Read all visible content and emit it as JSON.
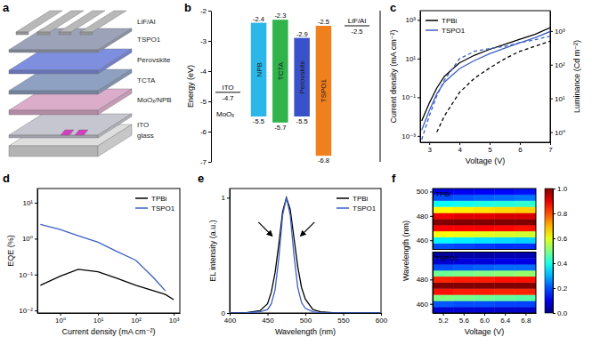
{
  "diagram": {
    "panel": "a",
    "layers": [
      "LiF/Al",
      "TSPO1",
      "Perovskite",
      "TCTA",
      "MoOₓ/NPB",
      "ITO",
      "glass"
    ]
  },
  "chart_data": [
    {
      "type": "energy_levels",
      "panel": "b",
      "ylabel": "Energy (eV)",
      "ylim": [
        -7,
        -2
      ],
      "yticks": [
        -7,
        -6,
        -5,
        -4,
        -3,
        -2
      ],
      "tick_labels": "y",
      "categories": [
        "NPB",
        "TCTA",
        "Perovskite",
        "TSPO1"
      ],
      "high": [
        -2.4,
        -2.3,
        -2.9,
        -2.5
      ],
      "low": [
        -5.5,
        -5.7,
        -5.5,
        -6.8
      ],
      "colors": [
        "#2bb7e9",
        "#2fb34a",
        "#3a52c9",
        "#f0801e"
      ],
      "data_labels": true,
      "levels": [
        {
          "label": "ITO",
          "value": -4.7
        },
        {
          "label": "LiF/Al",
          "value": -2.5
        }
      ],
      "annotations": [
        {
          "text": "MoOₓ",
          "y": -5.4
        }
      ]
    },
    {
      "type": "line",
      "panel": "c",
      "xlabel": "Voltage (V)",
      "ylabel": "Current density (mA cm⁻²)",
      "y2label": "Luminance (Cd m⁻²)",
      "log": "y",
      "x": [
        2.75,
        3,
        3.25,
        3.5,
        4,
        4.5,
        5,
        5.5,
        6,
        6.5,
        7
      ],
      "xlim": [
        2.7,
        7
      ],
      "xticks": [
        3,
        4,
        5,
        6,
        7
      ],
      "ylim": [
        0.00047,
        3000
      ],
      "yticks": [
        {
          "value": 0.001,
          "label": "10⁻³"
        },
        {
          "value": 0.1,
          "label": "10⁻¹"
        },
        {
          "value": 10,
          "label": "10¹"
        },
        {
          "value": 1000,
          "label": "10³"
        }
      ],
      "y2lim": [
        0.5,
        4000
      ],
      "y2ticks": [
        {
          "value": 1,
          "label": "10⁰"
        },
        {
          "value": 10,
          "label": "10¹"
        },
        {
          "value": 100,
          "label": "10²"
        },
        {
          "value": 1000,
          "label": "10³"
        }
      ],
      "legend": "top-left",
      "series": [
        {
          "name": "TPBi",
          "color": "#000000",
          "line_style": "solid",
          "values": [
            0.006,
            0.05,
            0.3,
            1.2,
            6,
            15,
            30,
            55,
            100,
            180,
            400
          ]
        },
        {
          "name": "TSPO1",
          "color": "#3b5fc4",
          "line_style": "solid",
          "values": [
            0.002,
            0.02,
            0.15,
            0.6,
            3,
            8,
            18,
            35,
            65,
            120,
            250
          ]
        },
        {
          "name": "TPBi",
          "color": "#000000",
          "line_style": "dashed",
          "axis": "y2",
          "values": [
            null,
            null,
            1,
            3,
            15,
            40,
            80,
            150,
            250,
            350,
            500
          ]
        },
        {
          "name": "TSPO1",
          "color": "#3b5fc4",
          "line_style": "dashed",
          "axis": "y2",
          "values": [
            0.6,
            3,
            12,
            35,
            150,
            250,
            300,
            350,
            450,
            550,
            700
          ]
        }
      ]
    },
    {
      "type": "line",
      "panel": "d",
      "xlabel": "Current density (mA cm⁻²)",
      "ylabel": "EQE (%)",
      "log": true,
      "x": [
        0.3,
        1,
        3,
        10,
        30,
        100,
        300,
        600,
        1000
      ],
      "xlim": [
        0.25,
        1450
      ],
      "xticks": [
        {
          "value": 1,
          "label": "10⁰"
        },
        {
          "value": 10,
          "label": "10¹"
        },
        {
          "value": 100,
          "label": "10²"
        },
        {
          "value": 1000,
          "label": "10³"
        }
      ],
      "ylim": [
        0.0085,
        25
      ],
      "yticks": [
        {
          "value": 0.01,
          "label": "10⁻²"
        },
        {
          "value": 0.1,
          "label": "10⁻¹"
        },
        {
          "value": 1,
          "label": "10⁰"
        },
        {
          "value": 10,
          "label": "10¹"
        }
      ],
      "legend": "top-right",
      "series": [
        {
          "name": "TPBi",
          "color": "#000000",
          "line_style": "solid",
          "values": [
            0.05,
            0.09,
            0.14,
            0.12,
            0.08,
            0.05,
            0.035,
            0.028,
            0.02
          ]
        },
        {
          "name": "TSPO1",
          "color": "#3b5fc4",
          "line_style": "solid",
          "values": [
            2.5,
            1.8,
            1.2,
            0.8,
            0.45,
            0.25,
            0.08,
            0.035,
            null
          ]
        }
      ]
    },
    {
      "type": "line",
      "panel": "e",
      "xlabel": "Wavelength (nm)",
      "ylabel": "EL intensity (a.u.)",
      "x": [
        400,
        420,
        440,
        450,
        455,
        460,
        465,
        470,
        475,
        480,
        485,
        490,
        495,
        500,
        510,
        520,
        540,
        560,
        600
      ],
      "xlim": [
        400,
        600
      ],
      "xticks": [
        400,
        450,
        500,
        550,
        600
      ],
      "ylim": [
        0,
        1.08
      ],
      "yticks": [
        0,
        1
      ],
      "legend": "top-right",
      "series": [
        {
          "name": "TPBi",
          "color": "#000000",
          "line_style": "solid",
          "values": [
            0,
            0,
            0.02,
            0.08,
            0.18,
            0.35,
            0.6,
            0.88,
            1.0,
            0.9,
            0.65,
            0.4,
            0.22,
            0.12,
            0.03,
            0.01,
            0,
            0,
            0
          ]
        },
        {
          "name": "TSPO1",
          "color": "#3b5fc4",
          "line_style": "solid",
          "values": [
            0,
            0,
            0.01,
            0.03,
            0.08,
            0.2,
            0.48,
            0.85,
            1.0,
            0.85,
            0.5,
            0.22,
            0.09,
            0.04,
            0.01,
            0,
            0,
            0,
            0
          ]
        }
      ]
    },
    {
      "type": "heatmap",
      "panel": "f",
      "xlabel": "Voltage (V)",
      "ylabel": "Wavelength (nm)",
      "x": [
        5.2,
        5.6,
        6.0,
        6.4,
        6.8
      ],
      "xlim": [
        5.0,
        7.0
      ],
      "xticks": [
        5.2,
        5.6,
        {
          "value": 6,
          "label": "6.0"
        },
        6.4,
        6.8
      ],
      "y": [
        455,
        460,
        465,
        470,
        475,
        480,
        485,
        490,
        495,
        500
      ],
      "ylim": [
        452.5,
        502.5
      ],
      "maps": [
        {
          "name": "TPBi",
          "yticks": [
            460,
            480,
            500
          ],
          "cells": [
            [
              0.2,
              0.19,
              0.18,
              0.17,
              0.17
            ],
            [
              0.37,
              0.36,
              0.35,
              0.34,
              0.33
            ],
            [
              0.62,
              0.61,
              0.6,
              0.59,
              0.58
            ],
            [
              0.88,
              0.88,
              0.88,
              0.87,
              0.86
            ],
            [
              1.0,
              1.0,
              1.0,
              1.0,
              1.0
            ],
            [
              0.89,
              0.9,
              0.9,
              0.91,
              0.91
            ],
            [
              0.63,
              0.64,
              0.65,
              0.66,
              0.67
            ],
            [
              0.38,
              0.39,
              0.4,
              0.41,
              0.42
            ],
            [
              0.2,
              0.21,
              0.22,
              0.23,
              0.24
            ],
            [
              0.1,
              0.11,
              0.12,
              0.13,
              0.14
            ]
          ]
        },
        {
          "name": "TSPO1",
          "yticks": [
            460,
            480
          ],
          "cells": [
            [
              0.08,
              0.08,
              0.08,
              0.07,
              0.07
            ],
            [
              0.21,
              0.2,
              0.2,
              0.19,
              0.19
            ],
            [
              0.5,
              0.49,
              0.48,
              0.47,
              0.46
            ],
            [
              0.86,
              0.85,
              0.85,
              0.84,
              0.84
            ],
            [
              1.0,
              1.0,
              1.0,
              1.0,
              1.0
            ],
            [
              0.84,
              0.85,
              0.85,
              0.86,
              0.86
            ],
            [
              0.48,
              0.49,
              0.5,
              0.51,
              0.52
            ],
            [
              0.2,
              0.21,
              0.22,
              0.23,
              0.23
            ],
            [
              0.08,
              0.09,
              0.09,
              0.1,
              0.1
            ],
            [
              0.03,
              0.04,
              0.04,
              0.05,
              0.05
            ]
          ]
        }
      ],
      "colorbar": {
        "range": [
          0,
          1
        ],
        "ticks": [
          {
            "value": 0,
            "label": "0.0"
          },
          0.2,
          0.4,
          0.6,
          0.8,
          {
            "value": 1,
            "label": "1.0"
          }
        ]
      }
    }
  ]
}
